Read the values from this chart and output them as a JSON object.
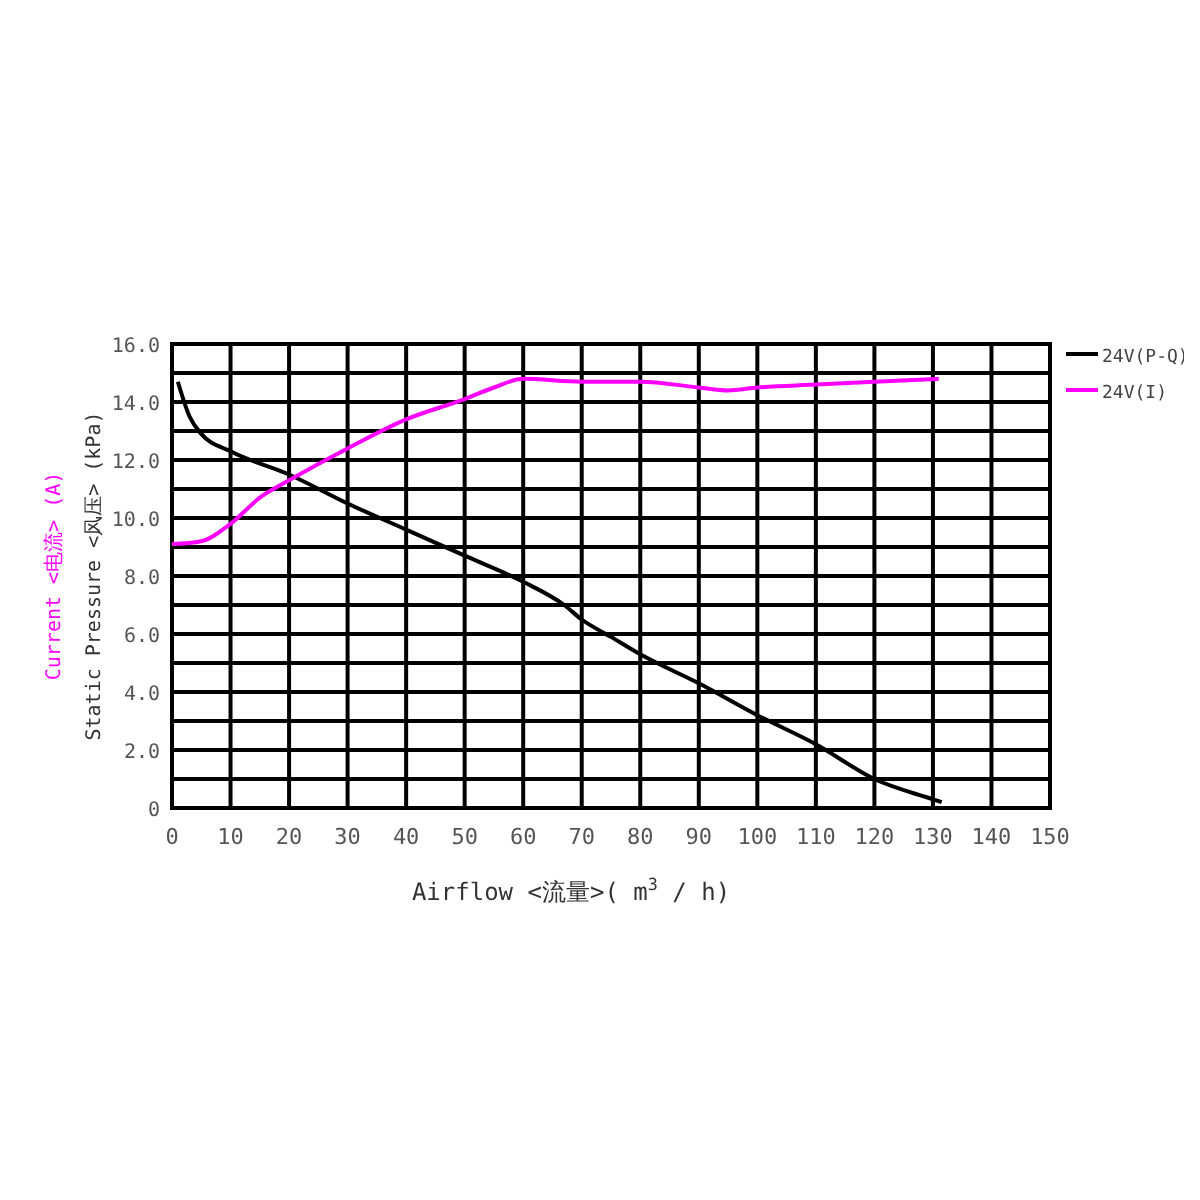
{
  "chart_data": {
    "type": "line",
    "xlabel": "Airflow  <流量>( m$^{3}$ / h)",
    "ylabel": "Static  Pressure  <风压> (kPa)",
    "annotations": [
      "Current  <电流> (A)"
    ],
    "xlim": [
      0,
      150
    ],
    "xticks": [
      0,
      10,
      20,
      30,
      40,
      50,
      60,
      70,
      80,
      90,
      100,
      110,
      120,
      130,
      140,
      150
    ],
    "ylim": [
      0,
      16
    ],
    "yticks": [
      {
        "value": 0,
        "label": "0"
      },
      {
        "value": 1,
        "label": null
      },
      {
        "value": 2,
        "label": "2.0"
      },
      {
        "value": 3,
        "label": null
      },
      {
        "value": 4,
        "label": "4.0"
      },
      {
        "value": 5,
        "label": null
      },
      {
        "value": 6,
        "label": "6.0"
      },
      {
        "value": 7,
        "label": null
      },
      {
        "value": 8,
        "label": "8.0"
      },
      {
        "value": 9,
        "label": null
      },
      {
        "value": 10,
        "label": "10.0"
      },
      {
        "value": 11,
        "label": null
      },
      {
        "value": 12,
        "label": "12.0"
      },
      {
        "value": 13,
        "label": null
      },
      {
        "value": 14,
        "label": "14.0"
      },
      {
        "value": 15,
        "label": null
      },
      {
        "value": 16,
        "label": "16.0"
      }
    ],
    "grid": true,
    "legend": "top right",
    "marker": "none",
    "line_style": "solid",
    "series": [
      {
        "name": "24V(P-Q)",
        "color": "#000000",
        "x": [
          1,
          3,
          5,
          10,
          20,
          30,
          40,
          50,
          60,
          67,
          70,
          75,
          80,
          90,
          100,
          110,
          120,
          130,
          131.5
        ],
        "values": [
          14.7,
          13.5,
          12.9,
          12.3,
          11.5,
          10.5,
          9.6,
          8.7,
          7.8,
          7.0,
          6.5,
          5.9,
          5.3,
          4.3,
          3.2,
          2.2,
          1.0,
          0.3,
          0.2
        ]
      },
      {
        "name": "24V(I)",
        "color": "#ff00ff",
        "x": [
          0,
          5,
          10,
          15,
          20,
          30,
          40,
          50,
          55,
          60,
          70,
          80,
          90,
          95,
          100,
          110,
          120,
          131
        ],
        "values": [
          9.1,
          9.2,
          9.8,
          10.7,
          11.3,
          12.4,
          13.4,
          14.1,
          14.5,
          14.8,
          14.7,
          14.7,
          14.5,
          14.4,
          14.5,
          14.6,
          14.7,
          14.8
        ]
      }
    ]
  }
}
